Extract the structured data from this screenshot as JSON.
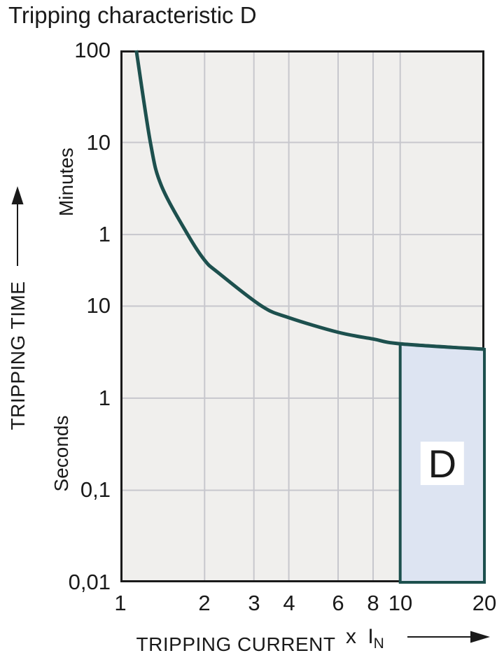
{
  "page_title": "Tripping characteristic D",
  "colors": {
    "curve": "#1d504e",
    "region_fill": "#dde4f2",
    "region_border": "#1d504e",
    "plot_background": "#f0efed",
    "gridline": "#c7c7cd",
    "axis_border": "#1a1a1a",
    "text": "#1a1a1a",
    "label_box": "#ffffff"
  },
  "chart_data": {
    "type": "line",
    "title": "Tripping characteristic D",
    "x_scale": "log",
    "y_scale": "log",
    "grid": true,
    "xlim": [
      1,
      20
    ],
    "ylim_seconds": [
      0.01,
      6000
    ],
    "x_axis_name": "TRIPPING CURRENT",
    "x_axis_unit": "x I",
    "x_axis_unit_subscript": "N",
    "y_axis_name": "TRIPPING TIME",
    "y_unit_upper": "Minutes",
    "y_unit_lower": "Seconds",
    "x_ticks": [
      {
        "value": 1,
        "label": "1"
      },
      {
        "value": 2,
        "label": "2"
      },
      {
        "value": 3,
        "label": "3"
      },
      {
        "value": 4,
        "label": "4"
      },
      {
        "value": 6,
        "label": "6"
      },
      {
        "value": 8,
        "label": "8"
      },
      {
        "value": 10,
        "label": "10"
      },
      {
        "value": 20,
        "label": "20"
      }
    ],
    "y_ticks": [
      {
        "seconds": 6000,
        "label": "100",
        "unit": "minutes"
      },
      {
        "seconds": 600,
        "label": "10",
        "unit": "minutes"
      },
      {
        "seconds": 60,
        "label": "1",
        "unit": "minutes"
      },
      {
        "seconds": 10,
        "label": "10",
        "unit": "seconds"
      },
      {
        "seconds": 1,
        "label": "1",
        "unit": "seconds"
      },
      {
        "seconds": 0.1,
        "label": "0,1",
        "unit": "seconds"
      },
      {
        "seconds": 0.01,
        "label": "0,01",
        "unit": "seconds"
      }
    ],
    "series": [
      {
        "name": "D tripping curve",
        "points_x_multiple_of_In_vs_seconds": [
          [
            1.14,
            6000
          ],
          [
            1.28,
            600
          ],
          [
            1.4,
            205
          ],
          [
            1.74,
            60
          ],
          [
            2.0,
            31.5
          ],
          [
            2.24,
            23
          ],
          [
            3.2,
            10
          ],
          [
            4,
            7.5
          ],
          [
            6,
            5.2
          ],
          [
            8,
            4.4
          ],
          [
            10,
            3.9
          ],
          [
            20,
            3.4
          ]
        ]
      }
    ],
    "region": {
      "label": "D",
      "x_from": 10,
      "x_to": 20,
      "t_from_seconds": 0.01,
      "t_to": "curve"
    }
  }
}
